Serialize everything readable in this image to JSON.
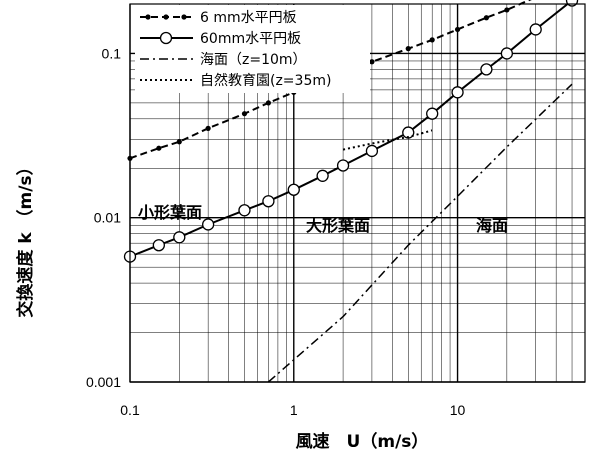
{
  "chart_data": {
    "type": "line",
    "x_scale": "log",
    "y_scale": "log",
    "xlim": [
      0.1,
      60
    ],
    "ylim": [
      0.001,
      0.2
    ],
    "grid": true,
    "legend_position": "top-left",
    "xlabel": "風速　U（m/s）",
    "ylabel": "交換速度 k （m/s）",
    "x_ticks": [
      "0.1",
      "1",
      "10"
    ],
    "y_ticks": [
      "0.001",
      "0.01",
      "0.1"
    ],
    "annotations": [
      "小形葉面",
      "大形葉面",
      "海面"
    ],
    "series": [
      {
        "name": "6 mm水平円板",
        "style": "dashed-dot-markers",
        "x": [
          0.1,
          0.15,
          0.2,
          0.3,
          0.5,
          0.7,
          1,
          1.5,
          2,
          3,
          5,
          7,
          10,
          15,
          20,
          30,
          50
        ],
        "y": [
          0.023,
          0.0265,
          0.029,
          0.035,
          0.043,
          0.05,
          0.058,
          0.068,
          0.076,
          0.089,
          0.107,
          0.121,
          0.14,
          0.165,
          0.184,
          0.22,
          0.28
        ]
      },
      {
        "name": "60mm水平円板",
        "style": "solid-open-circles",
        "x": [
          0.1,
          0.15,
          0.2,
          0.3,
          0.5,
          0.7,
          1,
          1.5,
          2,
          3,
          5,
          7,
          10,
          15,
          20,
          30,
          50
        ],
        "y": [
          0.0058,
          0.0068,
          0.0076,
          0.0091,
          0.0111,
          0.0126,
          0.0148,
          0.018,
          0.0208,
          0.0255,
          0.033,
          0.043,
          0.058,
          0.08,
          0.1,
          0.14,
          0.21
        ]
      },
      {
        "name": "海面（z=10m）",
        "style": "dash-dot",
        "x": [
          0.7,
          2,
          5,
          10,
          20,
          50
        ],
        "y": [
          0.001,
          0.0025,
          0.0068,
          0.0135,
          0.027,
          0.065
        ]
      },
      {
        "name": "自然教育園(z=35m)",
        "style": "dotted",
        "x": [
          2,
          3,
          5,
          7
        ],
        "y": [
          0.026,
          0.0283,
          0.031,
          0.034
        ]
      }
    ]
  }
}
